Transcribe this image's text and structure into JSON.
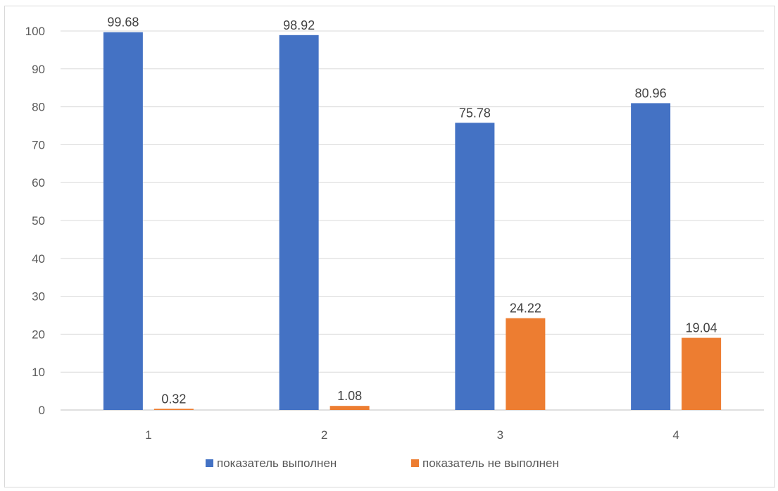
{
  "chart_data": {
    "type": "bar",
    "categories": [
      "1",
      "2",
      "3",
      "4"
    ],
    "series": [
      {
        "name": "показатель выполнен",
        "color": "#4472c4",
        "values": [
          99.68,
          98.92,
          75.78,
          80.96
        ],
        "labels": [
          "99.68",
          "98.92",
          "75.78",
          "80.96"
        ]
      },
      {
        "name": "показатель не выполнен",
        "color": "#ed7d31",
        "values": [
          0.32,
          1.08,
          24.22,
          19.04
        ],
        "labels": [
          "0.32",
          "1.08",
          "24.22",
          "19.04"
        ]
      }
    ],
    "ylim": [
      0,
      100
    ],
    "yticks": [
      0,
      10,
      20,
      30,
      40,
      50,
      60,
      70,
      80,
      90,
      100
    ],
    "ytick_labels": [
      "0",
      "10",
      "20",
      "30",
      "40",
      "50",
      "60",
      "70",
      "80",
      "90",
      "100"
    ],
    "grid": true,
    "legend_position": "bottom",
    "gridline_color": "#d9d9d9",
    "axis_color": "#bfbfbf"
  }
}
